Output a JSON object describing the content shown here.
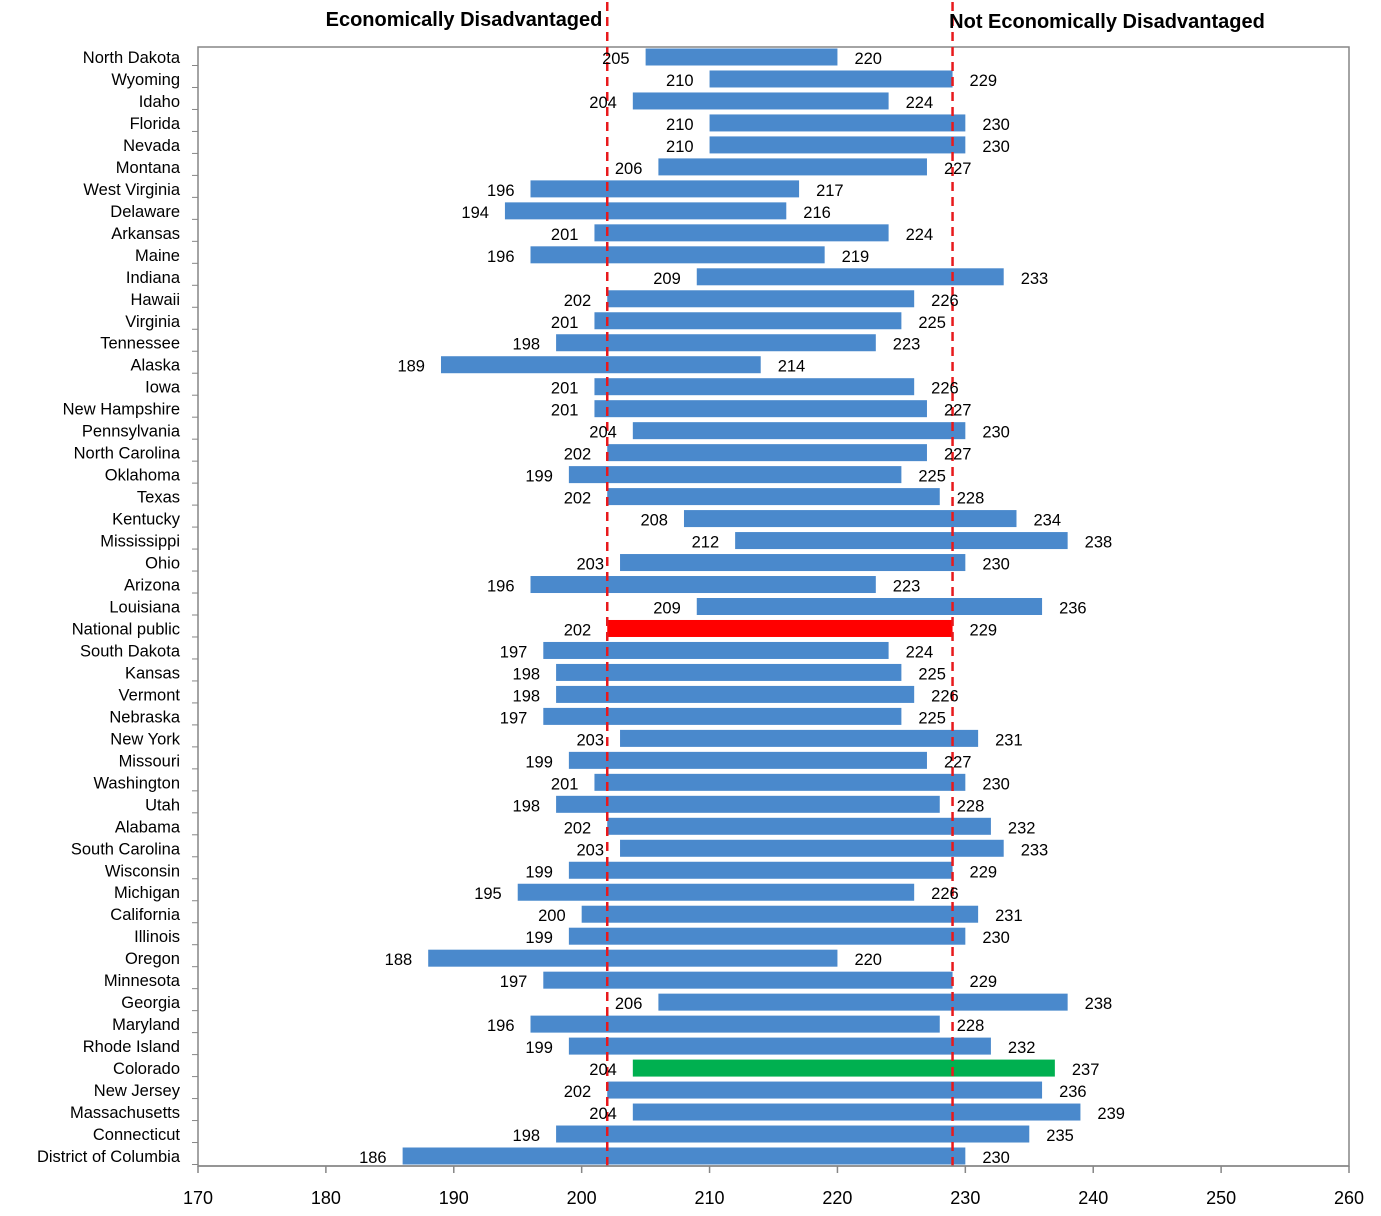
{
  "chart_data": {
    "type": "bar",
    "subtype": "floating-range-bar",
    "orientation": "horizontal",
    "title": "",
    "header_left": "Economically Disadvantaged",
    "header_right": "Not Economically Disadvantaged",
    "xlabel": "",
    "ylabel": "",
    "xlim": [
      170,
      260
    ],
    "xticks": [
      170,
      180,
      190,
      200,
      210,
      220,
      230,
      240,
      250,
      260
    ],
    "grid": false,
    "legend": "none",
    "reference_lines": [
      {
        "value": 202,
        "style": "dashed",
        "color": "#e8191c"
      },
      {
        "value": 229,
        "style": "dashed",
        "color": "#e8191c"
      }
    ],
    "colors": {
      "default": "#4a89cc",
      "highlight_national": "#ff0000",
      "highlight_state": "#00b050"
    },
    "categories": [
      "North Dakota",
      "Wyoming",
      "Idaho",
      "Florida",
      "Nevada",
      "Montana",
      "West Virginia",
      "Delaware",
      "Arkansas",
      "Maine",
      "Indiana",
      "Hawaii",
      "Virginia",
      "Tennessee",
      "Alaska",
      "Iowa",
      "New Hampshire",
      "Pennsylvania",
      "North Carolina",
      "Oklahoma",
      "Texas",
      "Kentucky",
      "Mississippi",
      "Ohio",
      "Arizona",
      "Louisiana",
      "National public",
      "South Dakota",
      "Kansas",
      "Vermont",
      "Nebraska",
      "New York",
      "Missouri",
      "Washington",
      "Utah",
      "Alabama",
      "South Carolina",
      "Wisconsin",
      "Michigan",
      "California",
      "Illinois",
      "Oregon",
      "Minnesota",
      "Georgia",
      "Maryland",
      "Rhode Island",
      "Colorado",
      "New Jersey",
      "Massachusetts",
      "Connecticut",
      "District of Columbia"
    ],
    "series": [
      {
        "name": "Economically Disadvantaged",
        "values": [
          205,
          210,
          204,
          210,
          210,
          206,
          196,
          194,
          201,
          196,
          209,
          202,
          201,
          198,
          189,
          201,
          201,
          204,
          202,
          199,
          202,
          208,
          212,
          203,
          196,
          209,
          202,
          197,
          198,
          198,
          197,
          203,
          199,
          201,
          198,
          202,
          203,
          199,
          195,
          200,
          199,
          188,
          197,
          206,
          196,
          199,
          204,
          202,
          204,
          198,
          186
        ]
      },
      {
        "name": "Not Economically Disadvantaged",
        "values": [
          220,
          229,
          224,
          230,
          230,
          227,
          217,
          216,
          224,
          219,
          233,
          226,
          225,
          223,
          214,
          226,
          227,
          230,
          227,
          225,
          228,
          234,
          238,
          230,
          223,
          236,
          229,
          224,
          225,
          226,
          225,
          231,
          227,
          230,
          228,
          232,
          233,
          229,
          226,
          231,
          230,
          220,
          229,
          238,
          228,
          232,
          237,
          236,
          239,
          235,
          230
        ]
      }
    ],
    "highlights": {
      "National public": "highlight_national",
      "Colorado": "highlight_state"
    }
  }
}
